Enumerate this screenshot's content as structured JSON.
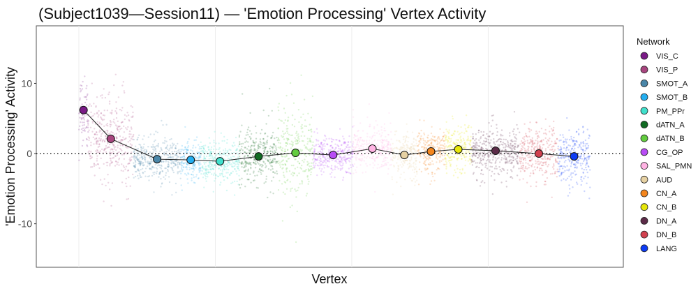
{
  "chart_data": {
    "type": "scatter",
    "title": "(Subject1039—Session11) — 'Emotion Processing' Vertex Activity",
    "xlabel": "Vertex",
    "ylabel": "'Emotion Processing' Activity",
    "xlim": [
      -1560,
      19950
    ],
    "ylim": [
      -16.2,
      18.2
    ],
    "x_gridlines": [
      0,
      5000,
      10000,
      15000
    ],
    "yticks": [
      10,
      0,
      -10
    ],
    "ytick_labels": [
      "10",
      "0",
      "-10"
    ],
    "reference_line": {
      "y": 0,
      "style": "dotted"
    },
    "legend": {
      "title": "Network",
      "position": "right"
    },
    "networks": [
      {
        "name": "VIS_C",
        "color": "#7a1a87",
        "x_start": 0,
        "x_end": 341,
        "mean": 6.2,
        "spread": 2.4
      },
      {
        "name": "VIS_P",
        "color": "#a8457f",
        "x_start": 341,
        "x_end": 2000,
        "mean": 2.1,
        "spread": 2.8
      },
      {
        "name": "SMOT_A",
        "color": "#4a86a8",
        "x_start": 2000,
        "x_end": 3732,
        "mean": -0.8,
        "spread": 1.5
      },
      {
        "name": "SMOT_B",
        "color": "#24aef0",
        "x_start": 3732,
        "x_end": 4463,
        "mean": -0.9,
        "spread": 1.5
      },
      {
        "name": "PM_PPr",
        "color": "#40e0cc",
        "x_start": 4463,
        "x_end": 5878,
        "mean": -1.1,
        "spread": 1.6
      },
      {
        "name": "dATN_A",
        "color": "#116b22",
        "x_start": 5878,
        "x_end": 7293,
        "mean": -0.4,
        "spread": 2.0
      },
      {
        "name": "dATN_B",
        "color": "#62cc3e",
        "x_start": 7293,
        "x_end": 8585,
        "mean": 0.1,
        "spread": 3.4
      },
      {
        "name": "CG_OP",
        "color": "#b84cf5",
        "x_start": 8585,
        "x_end": 10049,
        "mean": -0.2,
        "spread": 1.4
      },
      {
        "name": "SAL_PMN",
        "color": "#ffb3e3",
        "x_start": 10049,
        "x_end": 11463,
        "mean": 0.7,
        "spread": 1.6
      },
      {
        "name": "AUD",
        "color": "#e6d1a3",
        "x_start": 11463,
        "x_end": 12390,
        "mean": -0.2,
        "spread": 1.8
      },
      {
        "name": "CN_A",
        "color": "#f4861e",
        "x_start": 12390,
        "x_end": 13415,
        "mean": 0.3,
        "spread": 1.6
      },
      {
        "name": "CN_B",
        "color": "#e6e60a",
        "x_start": 13415,
        "x_end": 14390,
        "mean": 0.6,
        "spread": 1.7
      },
      {
        "name": "DN_A",
        "color": "#5c2b48",
        "x_start": 14390,
        "x_end": 16146,
        "mean": 0.4,
        "spread": 1.7
      },
      {
        "name": "DN_B",
        "color": "#d1414f",
        "x_start": 16146,
        "x_end": 17561,
        "mean": 0.0,
        "spread": 1.9
      },
      {
        "name": "LANG",
        "color": "#0d3cf5",
        "x_start": 17561,
        "x_end": 18732,
        "mean": -0.4,
        "spread": 2.0
      }
    ]
  }
}
